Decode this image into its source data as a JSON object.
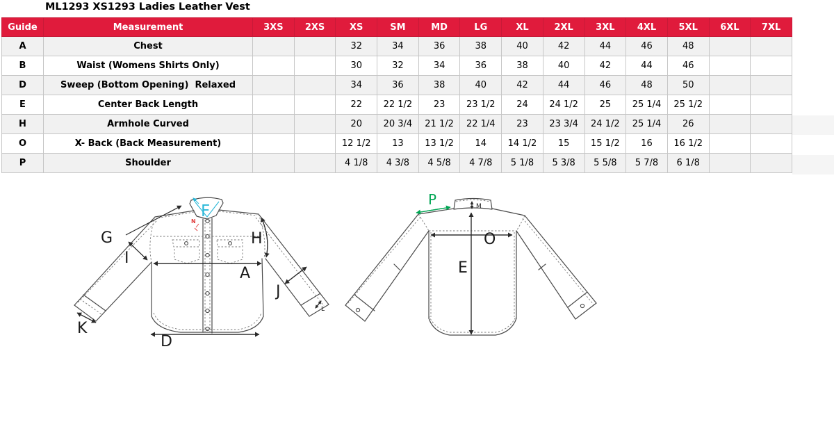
{
  "title": "ML1293 XS1293 Ladies Leather Vest",
  "size_chart": {
    "columns": [
      "Guide",
      "Measurement",
      "3XS",
      "2XS",
      "XS",
      "SM",
      "MD",
      "LG",
      "XL",
      "2XL",
      "3XL",
      "4XL",
      "5XL",
      "6XL",
      "7XL"
    ],
    "rows": [
      {
        "guide": "A",
        "measurement": "Chest",
        "values": [
          "",
          "",
          "32",
          "34",
          "36",
          "38",
          "40",
          "42",
          "44",
          "46",
          "48",
          "",
          ""
        ]
      },
      {
        "guide": "B",
        "measurement": "Waist (Womens Shirts Only)",
        "values": [
          "",
          "",
          "30",
          "32",
          "34",
          "36",
          "38",
          "40",
          "42",
          "44",
          "46",
          "",
          ""
        ]
      },
      {
        "guide": "D",
        "measurement": "Sweep (Bottom Opening)  Relaxed",
        "values": [
          "",
          "",
          "34",
          "36",
          "38",
          "40",
          "42",
          "44",
          "46",
          "48",
          "50",
          "",
          ""
        ]
      },
      {
        "guide": "E",
        "measurement": "Center Back Length",
        "values": [
          "",
          "",
          "22",
          "22 1/2",
          "23",
          "23 1/2",
          "24",
          "24 1/2",
          "25",
          "25 1/4",
          "25 1/2",
          "",
          ""
        ]
      },
      {
        "guide": "H",
        "measurement": "Armhole Curved",
        "values": [
          "",
          "",
          "20",
          "20 3/4",
          "21 1/2",
          "22 1/4",
          "23",
          "23 3/4",
          "24 1/2",
          "25 1/4",
          "26",
          "",
          ""
        ]
      },
      {
        "guide": "O",
        "measurement": "X- Back (Back Measurement)",
        "values": [
          "",
          "",
          "12 1/2",
          "13",
          "13 1/2",
          "14",
          "14 1/2",
          "15",
          "15 1/2",
          "16",
          "16 1/2",
          "",
          ""
        ]
      },
      {
        "guide": "P",
        "measurement": "Shoulder",
        "values": [
          "",
          "",
          "4 1/8",
          "4 3/8",
          "4 5/8",
          "4 7/8",
          "5 1/8",
          "5 3/8",
          "5 5/8",
          "5 7/8",
          "6 1/8",
          "",
          ""
        ]
      }
    ]
  },
  "diagrams": {
    "front_view": {
      "labels": {
        "F": "F",
        "N": "N",
        "G": "G",
        "I": "I",
        "H": "H",
        "A": "A",
        "J": "J",
        "K": "K",
        "L": "L",
        "D": "D"
      }
    },
    "back_view": {
      "labels": {
        "P": "P",
        "M": "M",
        "O": "O",
        "E": "E"
      }
    }
  },
  "colors": {
    "header_bg": "#E01B3C",
    "header_text": "#FFFFFF",
    "row_alt_bg": "#F1F1F1",
    "table_border": "#C6C6C6",
    "diagram_line": "#4A4A4A",
    "label_cyan": "#2BB8D8",
    "label_green": "#00A553",
    "label_red": "#E03A3A"
  }
}
